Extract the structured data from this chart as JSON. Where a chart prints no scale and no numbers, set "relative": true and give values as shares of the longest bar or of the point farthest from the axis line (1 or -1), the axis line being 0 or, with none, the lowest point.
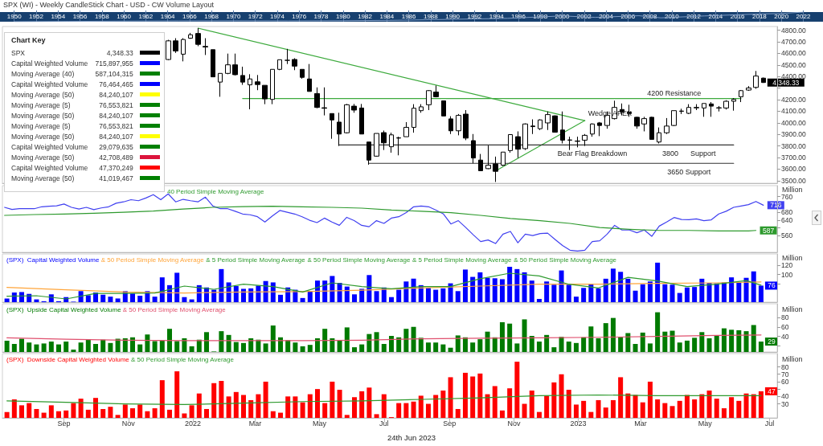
{
  "chart_data": [
    {
      "type": "line",
      "relative": true,
      "title": "SPX (WI) - Weekly CandleStick Chart - USD - CW Volume Layout",
      "x": [
        1950,
        1955,
        1960,
        1965,
        1970,
        1975,
        1980,
        1985,
        1990,
        1995,
        2000,
        2003,
        2007,
        2009,
        2013,
        2018,
        2020,
        2022
      ],
      "series": [
        {
          "color": "#7f9cc4",
          "values": [
            0,
            0.03,
            0.06,
            0.08,
            0.09,
            0.08,
            0.1,
            0.15,
            0.25,
            0.35,
            0.6,
            0.45,
            0.62,
            0.4,
            0.6,
            0.8,
            0.85,
            1
          ]
        }
      ],
      "xlim": [
        1948.7,
        2023.8
      ],
      "xticks": [
        1950,
        1952,
        1954,
        1956,
        1958,
        1960,
        1962,
        1964,
        1966,
        1968,
        1970,
        1972,
        1974,
        1976,
        1978,
        1980,
        1982,
        1984,
        1986,
        1988,
        1990,
        1992,
        1994,
        1996,
        1998,
        2000,
        2002,
        2004,
        2006,
        2008,
        2010,
        2012,
        2014,
        2016,
        2018,
        2020,
        2022
      ]
    },
    {
      "type": "candlestick",
      "x": [
        "2021-12-10",
        "2021-12-17",
        "2021-12-24",
        "2021-12-31",
        "2022-01-07",
        "2022-01-14",
        "2022-01-21",
        "2022-01-28",
        "2022-02-04",
        "2022-02-11",
        "2022-02-18",
        "2022-02-25",
        "2022-03-04",
        "2022-03-11",
        "2022-03-18",
        "2022-03-25",
        "2022-04-01",
        "2022-04-08",
        "2022-04-15",
        "2022-04-22",
        "2022-04-29",
        "2022-05-06",
        "2022-05-13",
        "2022-05-20",
        "2022-05-27",
        "2022-06-03",
        "2022-06-10",
        "2022-06-17",
        "2022-06-24",
        "2022-07-01",
        "2022-07-08",
        "2022-07-15",
        "2022-07-22",
        "2022-07-29",
        "2022-08-05",
        "2022-08-12",
        "2022-08-19",
        "2022-08-26",
        "2022-09-02",
        "2022-09-09",
        "2022-09-16",
        "2022-09-23",
        "2022-09-30",
        "2022-10-07",
        "2022-10-14",
        "2022-10-21",
        "2022-10-28",
        "2022-11-04",
        "2022-11-11",
        "2022-11-18",
        "2022-11-25",
        "2022-12-02",
        "2022-12-09",
        "2022-12-16",
        "2022-12-23",
        "2022-12-30",
        "2023-01-06",
        "2023-01-13",
        "2023-01-20",
        "2023-01-27",
        "2023-02-03",
        "2023-02-10",
        "2023-02-17",
        "2023-02-24",
        "2023-03-03",
        "2023-03-10",
        "2023-03-17",
        "2023-03-24",
        "2023-03-31",
        "2023-04-07",
        "2023-04-14",
        "2023-04-21",
        "2023-04-28",
        "2023-05-05",
        "2023-05-12",
        "2023-05-19",
        "2023-05-26",
        "2023-06-02",
        "2023-06-09",
        "2023-06-16",
        "2023-06-23"
      ],
      "ohlc": [
        [
          4547,
          4717,
          4542,
          4708
        ],
        [
          4708,
          4731,
          4604,
          4621
        ],
        [
          4593,
          4731,
          4531,
          4720
        ],
        [
          4731,
          4777,
          4726,
          4761
        ],
        [
          4772,
          4818,
          4662,
          4678
        ],
        [
          4660,
          4731,
          4586,
          4655
        ],
        [
          4632,
          4632,
          4397,
          4397
        ],
        [
          4352,
          4427,
          4225,
          4427
        ],
        [
          4427,
          4598,
          4420,
          4501
        ],
        [
          4501,
          4598,
          4409,
          4416
        ],
        [
          4409,
          4485,
          4328,
          4352
        ],
        [
          4328,
          4420,
          4117,
          4379
        ],
        [
          4354,
          4413,
          4282,
          4331
        ],
        [
          4324,
          4324,
          4161,
          4207
        ],
        [
          4202,
          4462,
          4161,
          4462
        ],
        [
          4462,
          4545,
          4455,
          4545
        ],
        [
          4540,
          4639,
          4508,
          4540
        ],
        [
          4547,
          4558,
          4455,
          4490
        ],
        [
          4462,
          4462,
          4381,
          4393
        ],
        [
          4379,
          4508,
          4271,
          4271
        ],
        [
          4253,
          4306,
          4126,
          4133
        ],
        [
          4130,
          4306,
          4064,
          4126
        ],
        [
          4080,
          4080,
          3862,
          4025
        ],
        [
          4006,
          4087,
          3800,
          3903
        ],
        [
          3914,
          4163,
          3908,
          4156
        ],
        [
          4144,
          4163,
          4087,
          4110
        ],
        [
          4128,
          4163,
          3903,
          3903
        ],
        [
          3834,
          3834,
          3638,
          3678
        ],
        [
          3712,
          3908,
          3708,
          3908
        ],
        [
          3915,
          3933,
          3765,
          3827
        ],
        [
          3793,
          3915,
          3742,
          3896
        ],
        [
          3870,
          3880,
          3719,
          3868
        ],
        [
          3880,
          4006,
          3880,
          3961
        ],
        [
          3961,
          4161,
          3915,
          4126
        ],
        [
          4105,
          4161,
          4087,
          4138
        ],
        [
          4156,
          4283,
          4110,
          4278
        ],
        [
          4266,
          4322,
          4220,
          4225
        ],
        [
          4190,
          4190,
          4059,
          4059
        ],
        [
          4034,
          4057,
          3903,
          3931
        ],
        [
          3931,
          4076,
          3892,
          4064
        ],
        [
          4075,
          4110,
          3850,
          3868
        ],
        [
          3846,
          3903,
          3650,
          3696
        ],
        [
          3678,
          3731,
          3586,
          3586
        ],
        [
          3604,
          3804,
          3600,
          3634
        ],
        [
          3645,
          3708,
          3489,
          3581
        ],
        [
          3634,
          3747,
          3627,
          3747
        ],
        [
          3760,
          3898,
          3742,
          3898
        ],
        [
          3880,
          3926,
          3696,
          3772
        ],
        [
          3777,
          3995,
          3765,
          3990
        ],
        [
          3972,
          4030,
          3903,
          3967
        ],
        [
          3949,
          4030,
          3938,
          4025
        ],
        [
          3999,
          4098,
          3938,
          4071
        ],
        [
          4060,
          4064,
          3915,
          3919
        ],
        [
          3938,
          4098,
          3822,
          3850
        ],
        [
          3850,
          3880,
          3765,
          3852
        ],
        [
          3840,
          3880,
          3788,
          3843
        ],
        [
          3850,
          3903,
          3800,
          3892
        ],
        [
          3903,
          3995,
          3880,
          3990
        ],
        [
          3999,
          4007,
          3885,
          3977
        ],
        [
          3977,
          4098,
          3949,
          4064
        ],
        [
          4036,
          4191,
          4029,
          4133
        ],
        [
          4115,
          4167,
          4064,
          4092
        ],
        [
          4092,
          4156,
          4052,
          4080
        ],
        [
          4048,
          4052,
          3949,
          3972
        ],
        [
          3990,
          4052,
          3926,
          4036
        ],
        [
          4048,
          4052,
          3857,
          3857
        ],
        [
          3834,
          3960,
          3822,
          3914
        ],
        [
          3914,
          4041,
          3903,
          3972
        ],
        [
          3977,
          4105,
          3972,
          4105
        ],
        [
          4099,
          4122,
          4076,
          4102
        ],
        [
          4082,
          4161,
          4076,
          4133
        ],
        [
          4129,
          4161,
          4110,
          4133
        ],
        [
          4128,
          4167,
          4052,
          4167
        ],
        [
          4163,
          4179,
          4052,
          4144
        ],
        [
          4130,
          4145,
          4098,
          4128
        ],
        [
          4128,
          4195,
          4115,
          4186
        ],
        [
          4186,
          4213,
          4105,
          4202
        ],
        [
          4225,
          4283,
          4179,
          4278
        ],
        [
          4283,
          4317,
          4276,
          4301
        ],
        [
          4306,
          4448,
          4294,
          4404
        ],
        [
          4386,
          4391,
          4345,
          4348.33
        ]
      ],
      "series": [
        {
          "type": "line",
          "color": "#3daa3d",
          "x": [
            "2022-01-07",
            "2023-01-06"
          ],
          "values": [
            4818,
            4019
          ]
        },
        {
          "type": "line",
          "color": "#3daa3d",
          "x": [
            "2022-10-14",
            "2023-01-06"
          ],
          "values": [
            3584,
            4019
          ]
        },
        {
          "type": "line",
          "color": "#3daa3d",
          "x": [
            "2022-02-18",
            "2023-06-02"
          ],
          "values": [
            4210,
            4210
          ]
        },
        {
          "type": "line",
          "color": "#333333",
          "x": [
            "2022-05-20",
            "2023-05-26"
          ],
          "values": [
            3808,
            3808
          ]
        },
        {
          "type": "line",
          "color": "#333333",
          "x": [
            "2022-06-17",
            "2023-05-26"
          ],
          "values": [
            3650,
            3650
          ]
        }
      ],
      "annotations": [
        {
          "text": "4200 Resistance",
          "x": "2023-03-31",
          "y": 4210
        },
        {
          "text": "Wedge APEX",
          "x": "2023-01-06",
          "y": 4019
        },
        {
          "text": "Bear Flag Breakdown",
          "x": "2023-01-13",
          "y": 3808
        },
        {
          "text": "3800      Support",
          "x": "2023-04-14",
          "y": 3808
        },
        {
          "text": "3650 Support",
          "x": "2023-04-14",
          "y": 3650
        },
        {
          "text": "4,348.33",
          "x": "2023-06-23",
          "y": 4348.33
        }
      ],
      "xlim": [
        "2021-07-07",
        "2023-07-06"
      ],
      "ylim": [
        3478,
        4832
      ],
      "yticks": [
        {
          "value": 3500,
          "label": "3500.00"
        },
        {
          "value": 3600,
          "label": "3600.00"
        },
        {
          "value": 3700,
          "label": "3700.00"
        },
        {
          "value": 3800,
          "label": "3800.00"
        },
        {
          "value": 3900,
          "label": "3900.00"
        },
        {
          "value": 4000,
          "label": "4000.00"
        },
        {
          "value": 4100,
          "label": "4100.00"
        },
        {
          "value": 4200,
          "label": "4200.00"
        },
        {
          "value": 4300,
          "label": null
        },
        {
          "value": 4400,
          "label": "4400.00"
        },
        {
          "value": 4500,
          "label": "4500.00"
        },
        {
          "value": 4600,
          "label": "4600.00"
        },
        {
          "value": 4700,
          "label": "4700.00"
        },
        {
          "value": 4800,
          "label": "4800.00"
        }
      ],
      "tick_labels": "y"
    },
    {
      "type": "other",
      "title": "Chart Key",
      "annotations": [
        "SPX",
        "4,348.33",
        "Capital Weighted Volume",
        "715,897,955",
        "Moving Average (40)",
        "587,104,315",
        "Capital Weighted Volume",
        "76,464,465",
        "Moving Average (50)",
        "84,240,107",
        "Moving Average (5)",
        "76,553,821",
        "Moving Average (50)",
        "84,240,107",
        "Moving Average (5)",
        "76,553,821",
        "Moving Average (50)",
        "84,240,107",
        "Capital Weighted Volume",
        "29,079,635",
        "Moving Average (50)",
        "42,708,489",
        "Capital Weighted Volume",
        "47,370,249",
        "Moving Average (50)",
        "41,019,467"
      ],
      "colors": [
        "#000000",
        "#0000ff",
        "#008000",
        "#0000ff",
        "#ffff00",
        "#008000",
        "#008000",
        "#008000",
        "#ffff00",
        "#008000",
        "#dc143c",
        "#ff0000",
        "#008000"
      ]
    },
    {
      "type": "line",
      "title": "40 Period Simple Moving Average",
      "ylabel": "Million",
      "x": [
        "2021-07-09",
        "2021-07-16",
        "2021-07-23",
        "2021-07-30",
        "2021-08-06",
        "2021-08-13",
        "2021-08-20",
        "2021-08-27",
        "2021-09-03",
        "2021-09-10",
        "2021-09-17",
        "2021-09-24",
        "2021-10-01",
        "2021-10-08",
        "2021-10-15",
        "2021-10-22",
        "2021-10-29",
        "2021-11-05",
        "2021-11-12",
        "2021-11-19",
        "2021-11-26",
        "2021-12-03",
        "2021-12-10",
        "2021-12-17",
        "2021-12-24",
        "2021-12-31",
        "2022-01-07",
        "2022-01-14",
        "2022-01-21",
        "2022-01-28",
        "2022-02-04",
        "2022-02-11",
        "2022-02-18",
        "2022-02-25",
        "2022-03-04",
        "2022-03-11",
        "2022-03-18",
        "2022-03-25",
        "2022-04-01",
        "2022-04-08",
        "2022-04-15",
        "2022-04-22",
        "2022-04-29",
        "2022-05-06",
        "2022-05-13",
        "2022-05-20",
        "2022-05-27",
        "2022-06-03",
        "2022-06-10",
        "2022-06-17",
        "2022-06-24",
        "2022-07-01",
        "2022-07-08",
        "2022-07-15",
        "2022-07-22",
        "2022-07-29",
        "2022-08-05",
        "2022-08-12",
        "2022-08-19",
        "2022-08-26",
        "2022-09-02",
        "2022-09-09",
        "2022-09-16",
        "2022-09-23",
        "2022-09-30",
        "2022-10-07",
        "2022-10-14",
        "2022-10-21",
        "2022-10-28",
        "2022-11-04",
        "2022-11-11",
        "2022-11-18",
        "2022-11-25",
        "2022-12-02",
        "2022-12-09",
        "2022-12-16",
        "2022-12-23",
        "2022-12-30",
        "2023-01-06",
        "2023-01-13",
        "2023-01-20",
        "2023-01-27",
        "2023-02-03",
        "2023-02-10",
        "2023-02-17",
        "2023-02-24",
        "2023-03-03",
        "2023-03-10",
        "2023-03-17",
        "2023-03-24",
        "2023-03-31",
        "2023-04-07",
        "2023-04-14",
        "2023-04-21",
        "2023-04-28",
        "2023-05-05",
        "2023-05-12",
        "2023-05-19",
        "2023-05-26",
        "2023-06-02",
        "2023-06-09",
        "2023-06-16",
        "2023-06-23"
      ],
      "series": [
        {
          "color": "#4040f0",
          "values": [
            705,
            694,
            698,
            698,
            698,
            708,
            711,
            713,
            722,
            705,
            696,
            705,
            693,
            702,
            708,
            726,
            733,
            744,
            739,
            753,
            770,
            744,
            774,
            733,
            746,
            739,
            733,
            757,
            712,
            698,
            698,
            685,
            671,
            667,
            657,
            630,
            661,
            689,
            680,
            671,
            657,
            639,
            627,
            650,
            630,
            613,
            654,
            637,
            613,
            606,
            637,
            623,
            650,
            657,
            678,
            708,
            712,
            708,
            691,
            671,
            620,
            637,
            602,
            565,
            530,
            538,
            520,
            568,
            582,
            524,
            568,
            561,
            571,
            573,
            541,
            510,
            486,
            482,
            486,
            530,
            534,
            568,
            613,
            589,
            589,
            575,
            589,
            557,
            609,
            630,
            653,
            643,
            642,
            646,
            637,
            641,
            671,
            685,
            705,
            712,
            719,
            735,
            716
          ]
        },
        {
          "color": "#2e9a2e",
          "x": [
            "2021-07-09",
            "2021-08-06",
            "2021-09-03",
            "2021-10-01",
            "2021-10-29",
            "2021-11-26",
            "2021-12-24",
            "2022-01-21",
            "2022-02-18",
            "2022-03-18",
            "2022-04-15",
            "2022-05-13",
            "2022-06-10",
            "2022-07-08",
            "2022-08-05",
            "2022-09-02",
            "2022-09-30",
            "2022-10-28",
            "2022-11-25",
            "2022-12-23",
            "2023-01-20",
            "2023-02-17",
            "2023-03-17",
            "2023-04-14",
            "2023-05-12",
            "2023-06-09",
            "2023-06-16"
          ],
          "values": [
            664,
            668,
            671,
            675,
            680,
            686,
            696,
            705,
            709,
            711,
            708,
            705,
            701,
            691,
            685,
            678,
            664,
            648,
            637,
            623,
            602,
            593,
            587,
            587,
            584,
            584,
            587
          ]
        }
      ],
      "annotations": [
        {
          "text": "716",
          "x": "2023-06-23",
          "y": 716
        },
        {
          "text": "587",
          "x": "2023-06-16",
          "y": 587
        }
      ],
      "xlim": [
        "2021-07-07",
        "2023-07-06"
      ],
      "ylim": [
        475,
        816
      ],
      "yticks": [
        560,
        {
          "value": 600,
          "label": null
        },
        640,
        680,
        {
          "value": 720,
          "label": null
        },
        760
      ],
      "tick_labels": "y"
    },
    {
      "type": "bar",
      "title": "(SPX)  Capital Weighted Volume & 50 Period Simple Moving Average & 5 Period Simple Moving Average & 50 Period Simple Moving Average & 5 Period Simple Moving Average & 50 Period Simple Moving Average",
      "ylabel": "Million",
      "x": [
        "2021-07-09",
        "2021-07-16",
        "2021-07-23",
        "2021-07-30",
        "2021-08-06",
        "2021-08-13",
        "2021-08-20",
        "2021-08-27",
        "2021-09-03",
        "2021-09-10",
        "2021-09-17",
        "2021-09-24",
        "2021-10-01",
        "2021-10-08",
        "2021-10-15",
        "2021-10-22",
        "2021-10-29",
        "2021-11-05",
        "2021-11-12",
        "2021-11-19",
        "2021-11-26",
        "2021-12-03",
        "2021-12-10",
        "2021-12-17",
        "2021-12-24",
        "2021-12-31",
        "2022-01-07",
        "2022-01-14",
        "2022-01-21",
        "2022-01-28",
        "2022-02-04",
        "2022-02-11",
        "2022-02-18",
        "2022-02-25",
        "2022-03-04",
        "2022-03-11",
        "2022-03-18",
        "2022-03-25",
        "2022-04-01",
        "2022-04-08",
        "2022-04-15",
        "2022-04-22",
        "2022-04-29",
        "2022-05-06",
        "2022-05-13",
        "2022-05-20",
        "2022-05-27",
        "2022-06-03",
        "2022-06-10",
        "2022-06-17",
        "2022-06-24",
        "2022-07-01",
        "2022-07-08",
        "2022-07-15",
        "2022-07-22",
        "2022-07-29",
        "2022-08-05",
        "2022-08-12",
        "2022-08-19",
        "2022-08-26",
        "2022-09-02",
        "2022-09-09",
        "2022-09-16",
        "2022-09-23",
        "2022-09-30",
        "2022-10-07",
        "2022-10-14",
        "2022-10-21",
        "2022-10-28",
        "2022-11-04",
        "2022-11-11",
        "2022-11-18",
        "2022-11-25",
        "2022-12-02",
        "2022-12-09",
        "2022-12-16",
        "2022-12-23",
        "2022-12-30",
        "2023-01-06",
        "2023-01-13",
        "2023-01-20",
        "2023-01-27",
        "2023-02-03",
        "2023-02-10",
        "2023-02-17",
        "2023-02-24",
        "2023-03-03",
        "2023-03-10",
        "2023-03-17",
        "2023-03-24",
        "2023-03-31",
        "2023-04-07",
        "2023-04-14",
        "2023-04-21",
        "2023-04-28",
        "2023-05-05",
        "2023-05-12",
        "2023-05-19",
        "2023-05-26",
        "2023-06-02",
        "2023-06-09",
        "2023-06-16",
        "2023-06-23"
      ],
      "series": [
        {
          "color": "#0000ff",
          "values": [
            48,
            61,
            62,
            58,
            46,
            42,
            57,
            42,
            51,
            41,
            64,
            55,
            61,
            56,
            52,
            48,
            64,
            59,
            54,
            64,
            52,
            94,
            77,
            104,
            51,
            46,
            77,
            72,
            67,
            112,
            83,
            75,
            69,
            70,
            76,
            86,
            83,
            56,
            72,
            67,
            49,
            64,
            87,
            87,
            97,
            82,
            74,
            57,
            69,
            99,
            64,
            72,
            51,
            67,
            85,
            91,
            77,
            71,
            67,
            70,
            81,
            64,
            111,
            95,
            105,
            93,
            92,
            90,
            117,
            112,
            105,
            87,
            47,
            85,
            78,
            109,
            78,
            52,
            71,
            79,
            70,
            91,
            113,
            106,
            91,
            65,
            79,
            85,
            126,
            79,
            78,
            60,
            72,
            73,
            91,
            82,
            81,
            83,
            94,
            83,
            93,
            107,
            76
          ]
        },
        {
          "type": "line",
          "color": "#ffa53a",
          "x": [
            "2021-07-09",
            "2021-09-03",
            "2021-10-29",
            "2021-12-24",
            "2022-02-18",
            "2022-04-15",
            "2022-06-10",
            "2022-08-05",
            "2022-09-30",
            "2022-11-25",
            "2023-01-20",
            "2023-03-17",
            "2023-05-12",
            "2023-06-23"
          ],
          "values": [
            72,
            67,
            62,
            60,
            62,
            63,
            66,
            71,
            75,
            79,
            79,
            81,
            82,
            84
          ]
        },
        {
          "type": "line",
          "color": "#2e9a2e",
          "x": [
            "2021-07-09",
            "2021-08-06",
            "2021-09-03",
            "2021-10-01",
            "2021-10-29",
            "2021-11-26",
            "2021-12-24",
            "2022-01-21",
            "2022-02-18",
            "2022-03-18",
            "2022-04-15",
            "2022-05-13",
            "2022-06-10",
            "2022-07-08",
            "2022-08-05",
            "2022-09-02",
            "2022-09-30",
            "2022-10-28",
            "2022-11-25",
            "2022-12-23",
            "2023-01-20",
            "2023-02-17",
            "2023-03-17",
            "2023-04-14",
            "2023-05-12",
            "2023-06-09",
            "2023-06-23"
          ],
          "values": [
            53,
            54,
            47,
            59,
            59,
            60,
            75,
            68,
            79,
            74,
            62,
            82,
            74,
            69,
            74,
            74,
            91,
            103,
            97,
            79,
            71,
            94,
            86,
            74,
            79,
            87,
            77
          ]
        }
      ],
      "annotations": [
        {
          "text": "76",
          "x": "2023-06-23",
          "y": 76
        }
      ],
      "xlim": [
        "2021-07-07",
        "2023-07-06"
      ],
      "ylim": [
        40,
        145
      ],
      "yticks": [
        {
          "value": 80,
          "label": null
        },
        100,
        120
      ],
      "tick_labels": "y"
    },
    {
      "type": "bar",
      "title": "(SPX)  Upside Capital Weighted Volume & 50 Period Simple Moving Average",
      "ylabel": "Million",
      "x": [
        "2021-07-09",
        "2021-07-16",
        "2021-07-23",
        "2021-07-30",
        "2021-08-06",
        "2021-08-13",
        "2021-08-20",
        "2021-08-27",
        "2021-09-03",
        "2021-09-10",
        "2021-09-17",
        "2021-09-24",
        "2021-10-01",
        "2021-10-08",
        "2021-10-15",
        "2021-10-22",
        "2021-10-29",
        "2021-11-05",
        "2021-11-12",
        "2021-11-19",
        "2021-11-26",
        "2021-12-03",
        "2021-12-10",
        "2021-12-17",
        "2021-12-24",
        "2021-12-31",
        "2022-01-07",
        "2022-01-14",
        "2022-01-21",
        "2022-01-28",
        "2022-02-04",
        "2022-02-11",
        "2022-02-18",
        "2022-02-25",
        "2022-03-04",
        "2022-03-11",
        "2022-03-18",
        "2022-03-25",
        "2022-04-01",
        "2022-04-08",
        "2022-04-15",
        "2022-04-22",
        "2022-04-29",
        "2022-05-06",
        "2022-05-13",
        "2022-05-20",
        "2022-05-27",
        "2022-06-03",
        "2022-06-10",
        "2022-06-17",
        "2022-06-24",
        "2022-07-01",
        "2022-07-08",
        "2022-07-15",
        "2022-07-22",
        "2022-07-29",
        "2022-08-05",
        "2022-08-12",
        "2022-08-19",
        "2022-08-26",
        "2022-09-02",
        "2022-09-09",
        "2022-09-16",
        "2022-09-23",
        "2022-09-30",
        "2022-10-07",
        "2022-10-14",
        "2022-10-21",
        "2022-10-28",
        "2022-11-04",
        "2022-11-11",
        "2022-11-18",
        "2022-11-25",
        "2022-12-02",
        "2022-12-09",
        "2022-12-16",
        "2022-12-23",
        "2022-12-30",
        "2023-01-06",
        "2023-01-13",
        "2023-01-20",
        "2023-01-27",
        "2023-02-03",
        "2023-02-10",
        "2023-02-17",
        "2023-02-24",
        "2023-03-03",
        "2023-03-10",
        "2023-03-17",
        "2023-03-24",
        "2023-03-31",
        "2023-04-07",
        "2023-04-14",
        "2023-04-21",
        "2023-04-28",
        "2023-05-05",
        "2023-05-12",
        "2023-05-19",
        "2023-05-26",
        "2023-06-02",
        "2023-06-09",
        "2023-06-16",
        "2023-06-23"
      ],
      "series": [
        {
          "color": "#007a00",
          "values": [
            31,
            24,
            35,
            27,
            23,
            25,
            29,
            23,
            29,
            12,
            27,
            33,
            24,
            33,
            26,
            35,
            36,
            38,
            23,
            44,
            30,
            31,
            56,
            30,
            36,
            19,
            33,
            49,
            8,
            51,
            43,
            28,
            26,
            36,
            33,
            25,
            63,
            38,
            32,
            27,
            19,
            22,
            36,
            56,
            36,
            32,
            59,
            17,
            23,
            45,
            49,
            24,
            41,
            38,
            56,
            60,
            37,
            27,
            27,
            23,
            16,
            42,
            38,
            27,
            34,
            50,
            38,
            70,
            67,
            25,
            76,
            41,
            29,
            43,
            17,
            39,
            29,
            26,
            38,
            61,
            36,
            68,
            79,
            39,
            47,
            24,
            48,
            25,
            91,
            50,
            52,
            27,
            31,
            37,
            49,
            36,
            42,
            57,
            54,
            53,
            51,
            64,
            29
          ]
        },
        {
          "type": "line",
          "color": "#e0506e",
          "x": [
            "2021-07-09",
            "2021-09-03",
            "2021-10-29",
            "2021-12-24",
            "2022-02-18",
            "2022-04-15",
            "2022-06-10",
            "2022-08-05",
            "2022-09-30",
            "2022-11-25",
            "2023-01-20",
            "2023-03-17",
            "2023-05-12",
            "2023-06-23"
          ],
          "values": [
            37,
            34,
            32,
            31,
            31,
            31,
            32,
            35,
            36,
            37,
            38,
            40,
            42,
            43
          ]
        }
      ],
      "annotations": [
        {
          "text": "29",
          "x": "2023-06-23",
          "y": 29
        }
      ],
      "xlim": [
        "2021-07-07",
        "2023-07-06"
      ],
      "ylim": [
        7,
        109
      ],
      "yticks": [
        {
          "value": 20,
          "label": null
        },
        40,
        60,
        80
      ],
      "tick_labels": "y"
    },
    {
      "type": "bar",
      "title": "(SPX)  Downside Capital Weighted Volume & 50 Period Simple Moving Average",
      "ylabel": "Million",
      "x": [
        "2021-07-09",
        "2021-07-16",
        "2021-07-23",
        "2021-07-30",
        "2021-08-06",
        "2021-08-13",
        "2021-08-20",
        "2021-08-27",
        "2021-09-03",
        "2021-09-10",
        "2021-09-17",
        "2021-09-24",
        "2021-10-01",
        "2021-10-08",
        "2021-10-15",
        "2021-10-22",
        "2021-10-29",
        "2021-11-05",
        "2021-11-12",
        "2021-11-19",
        "2021-11-26",
        "2021-12-03",
        "2021-12-10",
        "2021-12-17",
        "2021-12-24",
        "2021-12-31",
        "2022-01-07",
        "2022-01-14",
        "2022-01-21",
        "2022-01-28",
        "2022-02-04",
        "2022-02-11",
        "2022-02-18",
        "2022-02-25",
        "2022-03-04",
        "2022-03-11",
        "2022-03-18",
        "2022-03-25",
        "2022-04-01",
        "2022-04-08",
        "2022-04-15",
        "2022-04-22",
        "2022-04-29",
        "2022-05-06",
        "2022-05-13",
        "2022-05-20",
        "2022-05-27",
        "2022-06-03",
        "2022-06-10",
        "2022-06-17",
        "2022-06-24",
        "2022-07-01",
        "2022-07-08",
        "2022-07-15",
        "2022-07-22",
        "2022-07-29",
        "2022-08-05",
        "2022-08-12",
        "2022-08-19",
        "2022-08-26",
        "2022-09-02",
        "2022-09-09",
        "2022-09-16",
        "2022-09-23",
        "2022-09-30",
        "2022-10-07",
        "2022-10-14",
        "2022-10-21",
        "2022-10-28",
        "2022-11-04",
        "2022-11-11",
        "2022-11-18",
        "2022-11-25",
        "2022-12-02",
        "2022-12-09",
        "2022-12-16",
        "2022-12-23",
        "2022-12-30",
        "2023-01-06",
        "2023-01-13",
        "2023-01-20",
        "2023-01-27",
        "2023-02-03",
        "2023-02-10",
        "2023-02-17",
        "2023-02-24",
        "2023-03-03",
        "2023-03-10",
        "2023-03-17",
        "2023-03-24",
        "2023-03-31",
        "2023-04-07",
        "2023-04-14",
        "2023-04-21",
        "2023-04-28",
        "2023-05-05",
        "2023-05-12",
        "2023-05-19",
        "2023-05-26",
        "2023-06-02",
        "2023-06-09",
        "2023-06-16",
        "2023-06-23"
      ],
      "series": [
        {
          "color": "#ff0000",
          "values": [
            19,
            36,
            28,
            31,
            23,
            18,
            28,
            20,
            21,
            31,
            37,
            22,
            38,
            23,
            26,
            15,
            29,
            24,
            29,
            20,
            24,
            62,
            22,
            74,
            17,
            28,
            44,
            23,
            58,
            61,
            40,
            46,
            42,
            35,
            43,
            60,
            20,
            18,
            40,
            40,
            32,
            43,
            50,
            31,
            60,
            49,
            15,
            39,
            47,
            52,
            16,
            43,
            12,
            31,
            31,
            33,
            41,
            30,
            42,
            48,
            66,
            23,
            72,
            67,
            71,
            43,
            54,
            21,
            51,
            87,
            30,
            48,
            19,
            41,
            59,
            70,
            49,
            29,
            34,
            19,
            35,
            25,
            35,
            66,
            44,
            42,
            32,
            60,
            36,
            31,
            27,
            34,
            42,
            36,
            43,
            48,
            37,
            24,
            39,
            34,
            44,
            43,
            47
          ]
        },
        {
          "type": "line",
          "color": "#2e9a2e",
          "x": [
            "2021-07-09",
            "2021-09-03",
            "2021-10-29",
            "2021-12-24",
            "2022-02-18",
            "2022-04-15",
            "2022-06-10",
            "2022-08-05",
            "2022-09-30",
            "2022-11-25",
            "2023-01-20",
            "2023-03-17",
            "2023-05-12",
            "2023-06-23"
          ],
          "values": [
            34,
            32,
            30,
            29,
            31,
            33,
            34,
            36,
            38,
            41,
            42,
            41,
            41,
            41
          ]
        }
      ],
      "annotations": [
        {
          "text": "47",
          "x": "2023-06-23",
          "y": 47
        },
        "24th Jun 2023"
      ],
      "xlim": [
        "2021-07-07",
        "2023-07-06"
      ],
      "xticks": [
        {
          "value": "2021-09-01",
          "label": "Sep"
        },
        {
          "value": "2021-11-01",
          "label": "Nov"
        },
        {
          "value": "2022-01-01",
          "label": "2022"
        },
        {
          "value": "2022-03-01",
          "label": "Mar"
        },
        {
          "value": "2022-05-01",
          "label": "May"
        },
        {
          "value": "2022-07-01",
          "label": "Jul"
        },
        {
          "value": "2022-09-01",
          "label": "Sep"
        },
        {
          "value": "2022-11-01",
          "label": "Nov"
        },
        {
          "value": "2023-01-01",
          "label": "2023"
        },
        {
          "value": "2023-03-01",
          "label": "Mar"
        },
        {
          "value": "2023-05-01",
          "label": "May"
        },
        {
          "value": "2023-07-01",
          "label": "Jul"
        }
      ],
      "ylim": [
        11,
        98
      ],
      "yticks": [
        30,
        40,
        {
          "value": 50,
          "label": null
        },
        60,
        70,
        80
      ]
    }
  ]
}
